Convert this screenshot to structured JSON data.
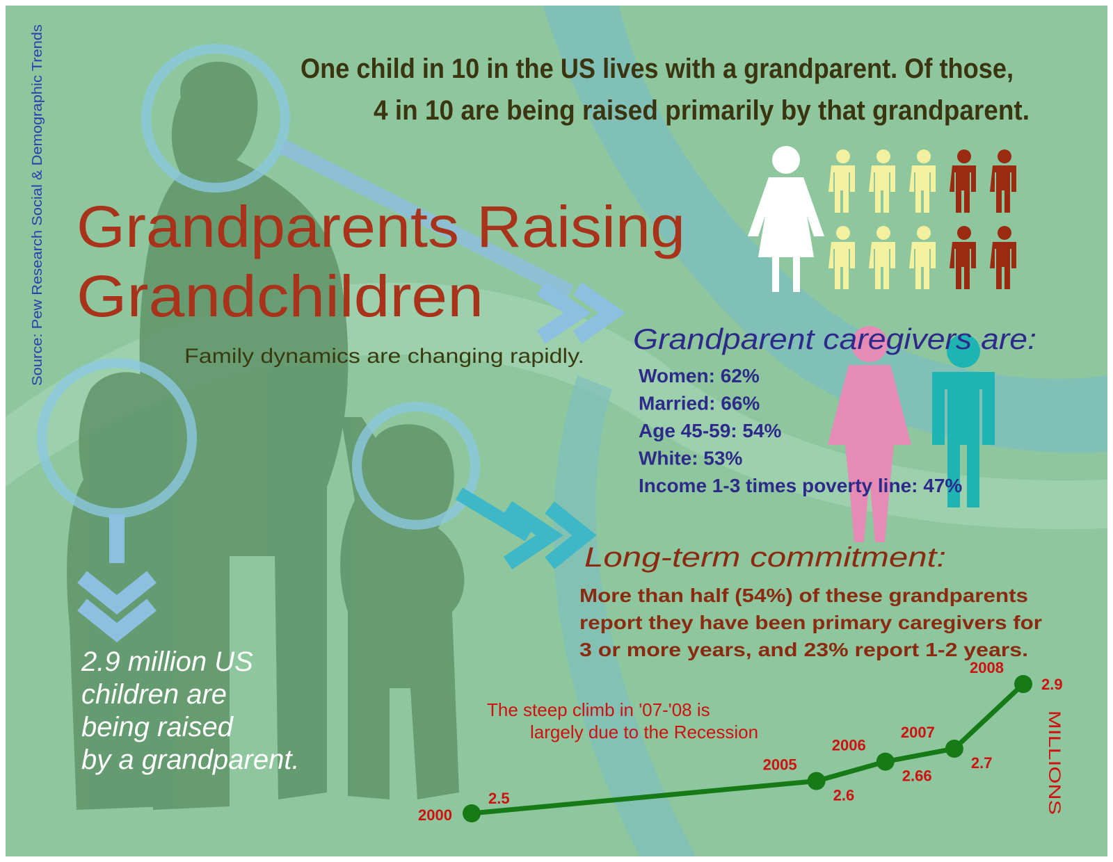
{
  "source": "Source: Pew Research Social & Demographic Trends",
  "headline": [
    "One child in 10 in the US lives with a grandparent. Of those,",
    "4 in 10 are being raised primarily by that grandparent."
  ],
  "title": [
    "Grandparents Raising",
    "Grandchildren"
  ],
  "subtitle": "Family dynamics are changing rapidly.",
  "caregivers": {
    "heading": "Grandparent caregivers are:",
    "items": [
      "Women: 62%",
      "Married: 66%",
      "Age 45-59: 54%",
      "White: 53%",
      "Income 1-3 times poverty line: 47%"
    ]
  },
  "commitment": {
    "heading": "Long-term commitment:",
    "lines": [
      "More than half (54%) of these grandparents",
      "report they have been primary caregivers for",
      "3 or more years, and 23% report 1-2 years."
    ]
  },
  "children_stat": [
    "2.9 million US",
    "children are",
    "being raised",
    "by a grandparent."
  ],
  "chart_data": {
    "type": "line",
    "annotation": [
      "The steep climb in '07-'08 is",
      "largely due to the Recession"
    ],
    "y_label": "MILLIONS",
    "x": [
      2000,
      2005,
      2006,
      2007,
      2008
    ],
    "values": [
      2.5,
      2.6,
      2.66,
      2.7,
      2.9
    ],
    "color": "#167a16"
  }
}
